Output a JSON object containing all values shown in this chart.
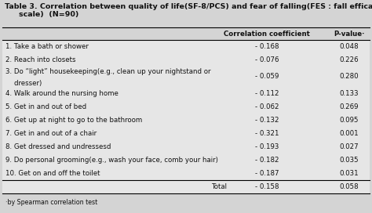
{
  "title_line1": "Table 3. Correlation between quality of life(SF-8/PCS) and fear of falling(FES : fall efficacy",
  "title_line2": "scale)  (N=90)",
  "col_header1": "Correlation coefficient",
  "col_header2": "P-value·",
  "rows": [
    {
      "label": "1. Take a bath or shower",
      "coef": "- 0.168",
      "pval": "0.048",
      "two_line": false
    },
    {
      "label": "2. Reach into closets",
      "coef": "- 0.076",
      "pval": "0.226",
      "two_line": false
    },
    {
      "label": "3. Do “light” housekeeping(e.g., clean up your nightstand or",
      "label2": "    dresser)",
      "coef": "- 0.059",
      "pval": "0.280",
      "two_line": true
    },
    {
      "label": "4. Walk around the nursing home",
      "coef": "- 0.112",
      "pval": "0.133",
      "two_line": false
    },
    {
      "label": "5. Get in and out of bed",
      "coef": "- 0.062",
      "pval": "0.269",
      "two_line": false
    },
    {
      "label": "6. Get up at night to go to the bathroom",
      "coef": "- 0.132",
      "pval": "0.095",
      "two_line": false
    },
    {
      "label": "7. Get in and out of a chair",
      "coef": "- 0.321",
      "pval": "0.001",
      "two_line": false
    },
    {
      "label": "8. Get dressed and undressesd",
      "coef": "- 0.193",
      "pval": "0.027",
      "two_line": false
    },
    {
      "label": "9. Do personal grooming(e.g., wash your face, comb your hair)",
      "coef": "- 0.182",
      "pval": "0.035",
      "two_line": false
    },
    {
      "label": "10. Get on and off the toilet",
      "coef": "- 0.187",
      "pval": "0.031",
      "two_line": false
    },
    {
      "label": "Total",
      "coef": "- 0.158",
      "pval": "0.058",
      "two_line": false,
      "is_total": true
    }
  ],
  "footnote": "·by Spearman correlation test",
  "bg_color": "#d4d4d4",
  "row_bg": "#e6e6e6",
  "text_color": "#111111",
  "fontsize": 6.2,
  "title_fontsize": 6.8
}
